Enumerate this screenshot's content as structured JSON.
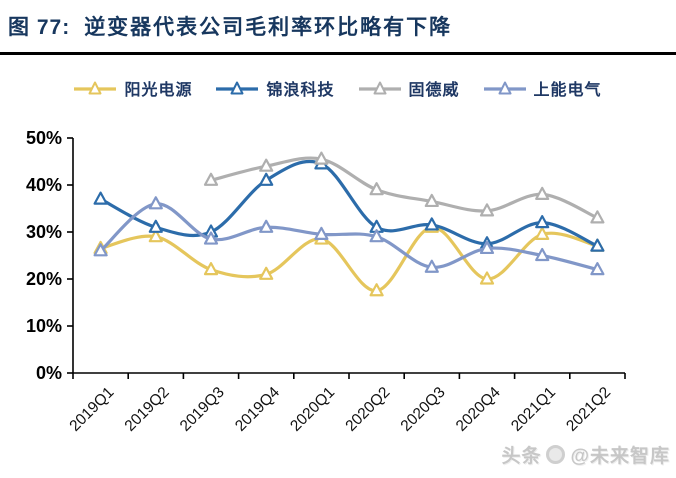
{
  "header": {
    "figure_label": "图 77:",
    "title_text": "逆变器代表公司毛利率环比略有下降",
    "title_color": "#17375E"
  },
  "watermark": {
    "prefix": "头条",
    "handle": "@未来智库"
  },
  "chart_data": {
    "type": "line",
    "title": "图 77: 逆变器代表公司毛利率环比略有下降",
    "categories": [
      "2019Q1",
      "2019Q2",
      "2019Q3",
      "2019Q4",
      "2020Q1",
      "2020Q2",
      "2020Q3",
      "2020Q4",
      "2021Q1",
      "2021Q2"
    ],
    "y_tick_labels": [
      "0%",
      "10%",
      "20%",
      "30%",
      "40%",
      "50%"
    ],
    "ylim": [
      0,
      50
    ],
    "y_tick_step": 10,
    "grid": false,
    "legend_position": "top",
    "marker": "open-triangle",
    "axis_color": "#000000",
    "series": [
      {
        "name": "阳光电源",
        "color": "#E5C65C",
        "values": [
          26.5,
          29,
          22,
          21,
          28.5,
          17.5,
          31,
          20,
          29.5,
          27
        ]
      },
      {
        "name": "锦浪科技",
        "color": "#2C6CAA",
        "values": [
          37,
          31,
          30,
          41,
          44.5,
          31,
          31.5,
          27.5,
          32,
          27
        ]
      },
      {
        "name": "固德威",
        "color": "#AFAFAF",
        "values": [
          null,
          null,
          41,
          44,
          45.5,
          39,
          36.5,
          34.5,
          38,
          33
        ]
      },
      {
        "name": "上能电气",
        "color": "#8197C8",
        "values": [
          26,
          36,
          28.5,
          31,
          29.5,
          29,
          22.5,
          26.5,
          25,
          22
        ]
      }
    ]
  }
}
